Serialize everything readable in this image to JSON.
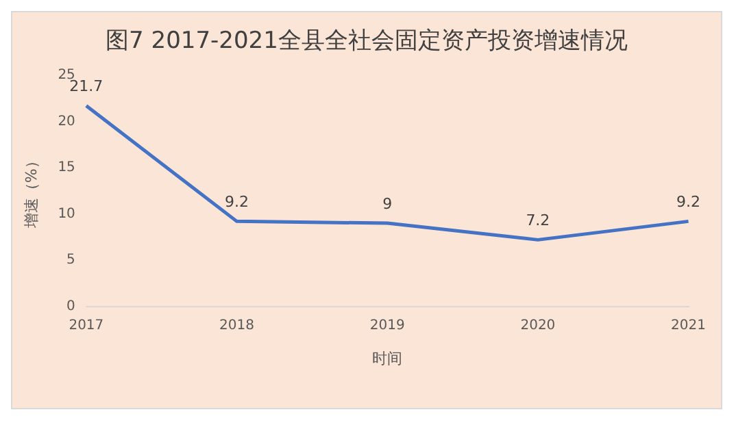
{
  "chart_data": {
    "type": "line",
    "title": "图7  2017-2021全县全社会固定资产投资增速情况",
    "xlabel": "时间",
    "ylabel": "增速（%）",
    "categories": [
      "2017",
      "2018",
      "2019",
      "2020",
      "2021"
    ],
    "series": [
      {
        "color": "#4472c4",
        "values": [
          21.7,
          9.2,
          9,
          7.2,
          9.2
        ]
      }
    ],
    "ylim": [
      0,
      25
    ],
    "yticks": [
      0,
      5,
      10,
      15,
      20,
      25
    ],
    "grid": false,
    "legend": false,
    "marker": "none",
    "line_style": "solid",
    "data_labels": true
  }
}
